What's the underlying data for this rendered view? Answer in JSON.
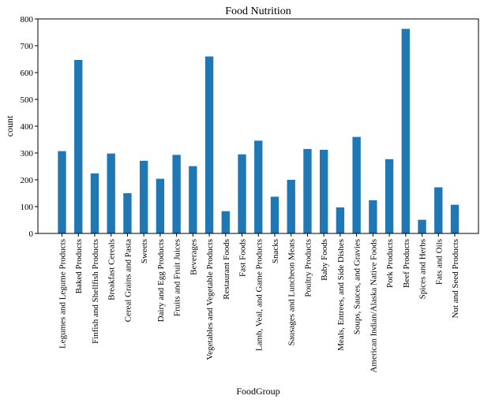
{
  "chart_data": {
    "type": "bar",
    "title": "Food Nutrition",
    "xlabel": "FoodGroup",
    "ylabel": "count",
    "ylim": [
      0,
      800
    ],
    "yticks": [
      0,
      100,
      200,
      300,
      400,
      500,
      600,
      700,
      800
    ],
    "grid": false,
    "bar_color": "#1f77b4",
    "categories": [
      "Legumes and Legume Products",
      "Baked Products",
      "Finfish and Shellfish Products",
      "Breakfast Cereals",
      "Cereal Grains and Pasta",
      "Sweets",
      "Dairy and Egg Products",
      "Fruits and Fruit Juices",
      "Beverages",
      "Vegetables and Vegetable Products",
      "Restaurant Foods",
      "Fast Foods",
      "Lamb, Veal, and Game Products",
      "Snacks",
      "Sausages and Luncheon Meats",
      "Poultry Products",
      "Baby Foods",
      "Meals, Entrees, and Side Dishes",
      "Soups, Sauces, and Gravies",
      "American Indian/Alaska Native Foods",
      "Pork Products",
      "Beef Products",
      "Spices and Herbs",
      "Fats and Oils",
      "Nut and Seed Products"
    ],
    "values": [
      307,
      647,
      224,
      298,
      150,
      271,
      204,
      293,
      251,
      660,
      83,
      295,
      346,
      137,
      200,
      315,
      312,
      97,
      360,
      124,
      277,
      763,
      51,
      172,
      107
    ]
  }
}
